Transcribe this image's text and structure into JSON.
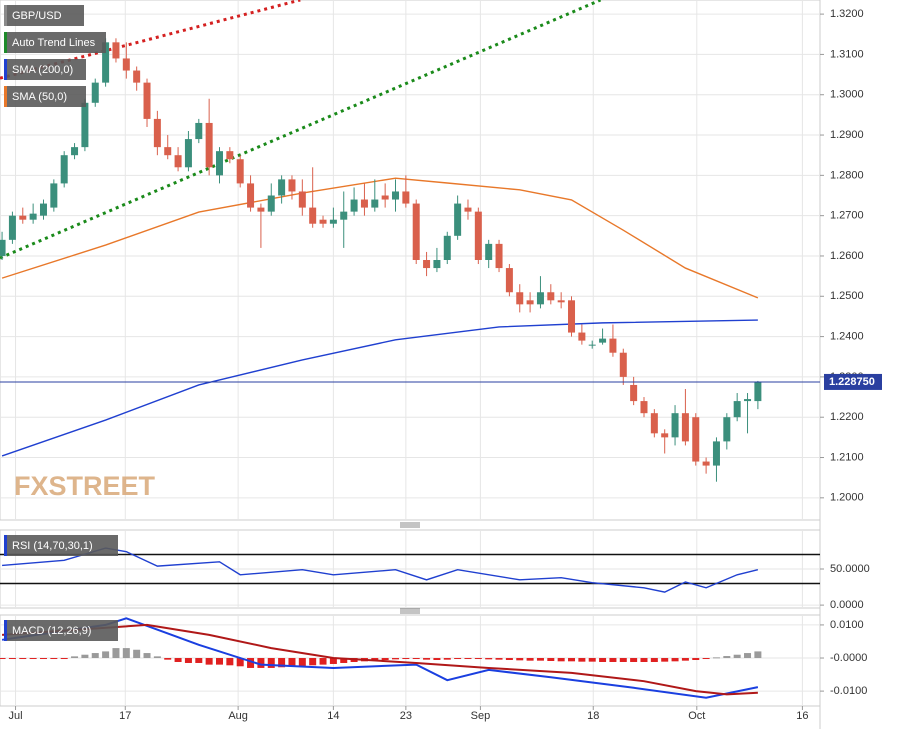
{
  "chart_data": [
    {
      "type": "candlestick",
      "title": "GBP/USD",
      "title_color": "#8a8a8a",
      "open": [
        1.26,
        1.264,
        1.27,
        1.269,
        1.27,
        1.272,
        1.278,
        1.285,
        1.287,
        1.298,
        1.303,
        1.313,
        1.309,
        1.306,
        1.303,
        1.294,
        1.287,
        1.285,
        1.282,
        1.289,
        1.293,
        1.28,
        1.286,
        1.284,
        1.278,
        1.272,
        1.271,
        1.275,
        1.279,
        1.276,
        1.272,
        1.269,
        1.268,
        1.269,
        1.271,
        1.274,
        1.272,
        1.275,
        1.274,
        1.276,
        1.273,
        1.259,
        1.257,
        1.259,
        1.265,
        1.272,
        1.271,
        1.259,
        1.263,
        1.257,
        1.251,
        1.249,
        1.248,
        1.251,
        1.249,
        1.249,
        1.241,
        1.238,
        1.2385,
        1.2395,
        1.236,
        1.228,
        1.224,
        1.221,
        1.216,
        1.215,
        1.221,
        1.22,
        1.209,
        1.208,
        1.214,
        1.22,
        1.224,
        1.224
      ],
      "high": [
        1.266,
        1.271,
        1.272,
        1.273,
        1.274,
        1.279,
        1.286,
        1.288,
        1.299,
        1.304,
        1.314,
        1.314,
        1.313,
        1.307,
        1.304,
        1.296,
        1.29,
        1.287,
        1.291,
        1.294,
        1.299,
        1.287,
        1.287,
        1.285,
        1.28,
        1.273,
        1.278,
        1.28,
        1.28,
        1.279,
        1.282,
        1.27,
        1.272,
        1.276,
        1.277,
        1.278,
        1.279,
        1.278,
        1.279,
        1.28,
        1.274,
        1.261,
        1.262,
        1.266,
        1.275,
        1.274,
        1.272,
        1.264,
        1.264,
        1.258,
        1.253,
        1.251,
        1.255,
        1.253,
        1.251,
        1.25,
        1.243,
        1.239,
        1.242,
        1.243,
        1.237,
        1.23,
        1.225,
        1.222,
        1.217,
        1.223,
        1.227,
        1.221,
        1.21,
        1.215,
        1.221,
        1.226,
        1.226,
        1.229
      ],
      "low": [
        1.259,
        1.263,
        1.268,
        1.268,
        1.269,
        1.271,
        1.277,
        1.284,
        1.286,
        1.297,
        1.302,
        1.308,
        1.304,
        1.301,
        1.292,
        1.285,
        1.284,
        1.281,
        1.281,
        1.288,
        1.28,
        1.278,
        1.283,
        1.277,
        1.271,
        1.262,
        1.27,
        1.273,
        1.274,
        1.27,
        1.267,
        1.267,
        1.267,
        1.262,
        1.27,
        1.27,
        1.271,
        1.272,
        1.271,
        1.272,
        1.258,
        1.255,
        1.256,
        1.258,
        1.264,
        1.269,
        1.258,
        1.257,
        1.256,
        1.25,
        1.246,
        1.246,
        1.247,
        1.248,
        1.247,
        1.24,
        1.238,
        1.237,
        1.238,
        1.235,
        1.228,
        1.223,
        1.22,
        1.215,
        1.211,
        1.213,
        1.213,
        1.208,
        1.206,
        1.204,
        1.212,
        1.219,
        1.216,
        1.222
      ],
      "close": [
        1.264,
        1.27,
        1.269,
        1.2705,
        1.273,
        1.278,
        1.285,
        1.287,
        1.298,
        1.303,
        1.313,
        1.309,
        1.306,
        1.303,
        1.294,
        1.287,
        1.285,
        1.282,
        1.289,
        1.293,
        1.282,
        1.286,
        1.284,
        1.278,
        1.272,
        1.271,
        1.275,
        1.279,
        1.276,
        1.272,
        1.268,
        1.268,
        1.269,
        1.271,
        1.274,
        1.272,
        1.274,
        1.274,
        1.276,
        1.273,
        1.259,
        1.257,
        1.259,
        1.265,
        1.273,
        1.271,
        1.259,
        1.263,
        1.257,
        1.251,
        1.248,
        1.248,
        1.251,
        1.249,
        1.2485,
        1.241,
        1.239,
        1.238,
        1.2395,
        1.236,
        1.23,
        1.224,
        1.221,
        1.216,
        1.215,
        1.221,
        1.214,
        1.209,
        1.208,
        1.214,
        1.22,
        1.224,
        1.2245,
        1.22875
      ],
      "up_color": "#3b8f7c",
      "down_color": "#d9604c",
      "xlim": [
        -0.2,
        79
      ],
      "ylim": [
        1.1945,
        1.3235
      ],
      "yticks": [
        {
          "value": 1.2,
          "label": "1.2000"
        },
        {
          "value": 1.21,
          "label": "1.2100"
        },
        {
          "value": 1.22,
          "label": "1.2200"
        },
        {
          "value": 1.23,
          "label": "1.2300"
        },
        {
          "value": 1.24,
          "label": "1.2400"
        },
        {
          "value": 1.25,
          "label": "1.2500"
        },
        {
          "value": 1.26,
          "label": "1.2600"
        },
        {
          "value": 1.27,
          "label": "1.2700"
        },
        {
          "value": 1.28,
          "label": "1.2800"
        },
        {
          "value": 1.29,
          "label": "1.2900"
        },
        {
          "value": 1.3,
          "label": "1.3000"
        },
        {
          "value": 1.31,
          "label": "1.3100"
        },
        {
          "value": 1.32,
          "label": "1.3200"
        }
      ],
      "trend_lines": {
        "name": "Auto Trend Lines",
        "color": "#1e8a2a",
        "lines": [
          {
            "color": "#d42020",
            "x": [
              -0.2,
              28.8
            ],
            "values": [
              1.3041,
              1.3235
            ]
          },
          {
            "color": "#1a8a1a",
            "x": [
              -0.2,
              57.8
            ],
            "values": [
              1.2595,
              1.3235
            ]
          }
        ]
      },
      "series": [
        {
          "name": "SMA (200,0)",
          "color": "#2040d0",
          "x": [
            0,
            10,
            19,
            29,
            38,
            48,
            58,
            73
          ],
          "values": [
            1.2104,
            1.2193,
            1.228,
            1.2342,
            1.2392,
            1.2424,
            1.2434,
            1.2441
          ]
        },
        {
          "name": "SMA (50,0)",
          "color": "#e8782a",
          "x": [
            0,
            10,
            19,
            29,
            38,
            43,
            50,
            55,
            60,
            66,
            73
          ],
          "values": [
            1.2545,
            1.2627,
            1.2709,
            1.2756,
            1.2793,
            1.2781,
            1.2764,
            1.2739,
            1.2664,
            1.257,
            1.2496
          ]
        }
      ],
      "last_price": {
        "value": 1.22875,
        "label": "1.228750",
        "color": "#2a3fa0"
      },
      "watermark": "FXSTREET",
      "grid": true
    },
    {
      "type": "line",
      "title": "RSI (14,70,30,1)",
      "xlim": [
        -0.2,
        79
      ],
      "ylim": [
        -4,
        104
      ],
      "yticks": [
        {
          "value": 0,
          "label": "0.0000"
        },
        {
          "value": 50,
          "label": "50.0000"
        }
      ],
      "levels": [
        70,
        30
      ],
      "series": [
        {
          "color": "#2040d0",
          "x": [
            0,
            6,
            10,
            12,
            15,
            21,
            23,
            29,
            32,
            38,
            41,
            44,
            50,
            54,
            57,
            62,
            64,
            66,
            68,
            71,
            73
          ],
          "values": [
            55,
            62,
            79,
            74,
            54,
            60,
            42,
            49,
            42,
            49,
            35,
            49,
            35,
            38,
            31,
            24,
            18,
            32,
            24,
            42,
            49
          ]
        }
      ],
      "grid": true
    },
    {
      "type": "macd",
      "title": "MACD (12,26,9)",
      "xlim": [
        -0.2,
        79
      ],
      "ylim": [
        -0.0145,
        0.013
      ],
      "yticks": [
        {
          "value": -0.01,
          "label": "-0.0100"
        },
        {
          "value": 0,
          "label": "-0.0000"
        },
        {
          "value": 0.01,
          "label": "0.0100"
        }
      ],
      "histogram": {
        "up_color": "#9a9a9a",
        "down_color": "#e02020",
        "values": [
          -0.0003,
          -0.0003,
          -0.0003,
          -0.0003,
          -0.0003,
          -0.0003,
          -0.0003,
          0.0005,
          0.001,
          0.0015,
          0.002,
          0.003,
          0.003,
          0.0025,
          0.0015,
          0.0005,
          -0.0005,
          -0.0012,
          -0.0015,
          -0.0015,
          -0.002,
          -0.002,
          -0.0022,
          -0.0025,
          -0.003,
          -0.003,
          -0.003,
          -0.0028,
          -0.0026,
          -0.0024,
          -0.0022,
          -0.002,
          -0.0018,
          -0.0015,
          -0.0012,
          -0.001,
          -0.0008,
          -0.0006,
          -0.0004,
          -0.0003,
          -0.0003,
          -0.0005,
          -0.0006,
          -0.0005,
          -0.0003,
          -0.0002,
          -0.0003,
          -0.0004,
          -0.0005,
          -0.0006,
          -0.0007,
          -0.0008,
          -0.0008,
          -0.0009,
          -0.001,
          -0.001,
          -0.0011,
          -0.0011,
          -0.0012,
          -0.0012,
          -0.0012,
          -0.0012,
          -0.0012,
          -0.0012,
          -0.0011,
          -0.001,
          -0.0008,
          -0.0006,
          -0.0003,
          0.0002,
          0.0006,
          0.001,
          0.0015,
          0.002
        ]
      },
      "series": [
        {
          "color": "#1a3fe0",
          "x": [
            0,
            10,
            12,
            19,
            25,
            32,
            40,
            43,
            47,
            53,
            61,
            68,
            73
          ],
          "values": [
            0.0055,
            0.01,
            0.012,
            0.004,
            -0.002,
            -0.003,
            -0.002,
            -0.0067,
            -0.0036,
            -0.0058,
            -0.009,
            -0.012,
            -0.0088
          ]
        },
        {
          "color": "#b01818",
          "x": [
            0,
            14,
            20,
            26,
            32,
            40,
            47,
            55,
            62,
            67,
            70,
            73
          ],
          "values": [
            0.007,
            0.01,
            0.007,
            0.003,
            0,
            -0.0015,
            -0.003,
            -0.0045,
            -0.007,
            -0.01,
            -0.011,
            -0.0105
          ]
        }
      ],
      "xticks": [
        {
          "value": 1.3,
          "label": "Jul"
        },
        {
          "value": 11.9,
          "label": "17"
        },
        {
          "value": 22.8,
          "label": "Aug"
        },
        {
          "value": 32,
          "label": "14"
        },
        {
          "value": 39,
          "label": "23"
        },
        {
          "value": 46.2,
          "label": "Sep"
        },
        {
          "value": 57.1,
          "label": "18"
        },
        {
          "value": 67.1,
          "label": "Oct"
        },
        {
          "value": 77.3,
          "label": "16"
        }
      ],
      "grid": true
    }
  ]
}
